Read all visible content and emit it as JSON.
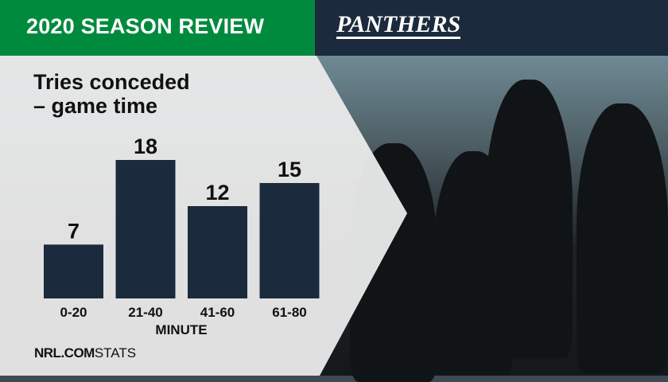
{
  "header": {
    "title": "2020 SEASON REVIEW",
    "team_logo": "PANTHERS"
  },
  "colors": {
    "header_green": "#008a3e",
    "header_navy": "#1b2a3c",
    "bar": "#1b2a3c",
    "panel": "#ebebeb"
  },
  "footer": {
    "brand_bold": "NRL.COM",
    "brand_light": "STATS"
  },
  "chart_data": {
    "type": "bar",
    "title": "Tries conceded\n– game time",
    "title_lines": [
      "Tries conceded",
      "– game time"
    ],
    "categories": [
      "0-20",
      "21-40",
      "41-60",
      "61-80"
    ],
    "values": [
      7,
      18,
      12,
      15
    ],
    "xlabel": "MINUTE",
    "ylabel": "",
    "data_labels": true,
    "grid": false
  }
}
